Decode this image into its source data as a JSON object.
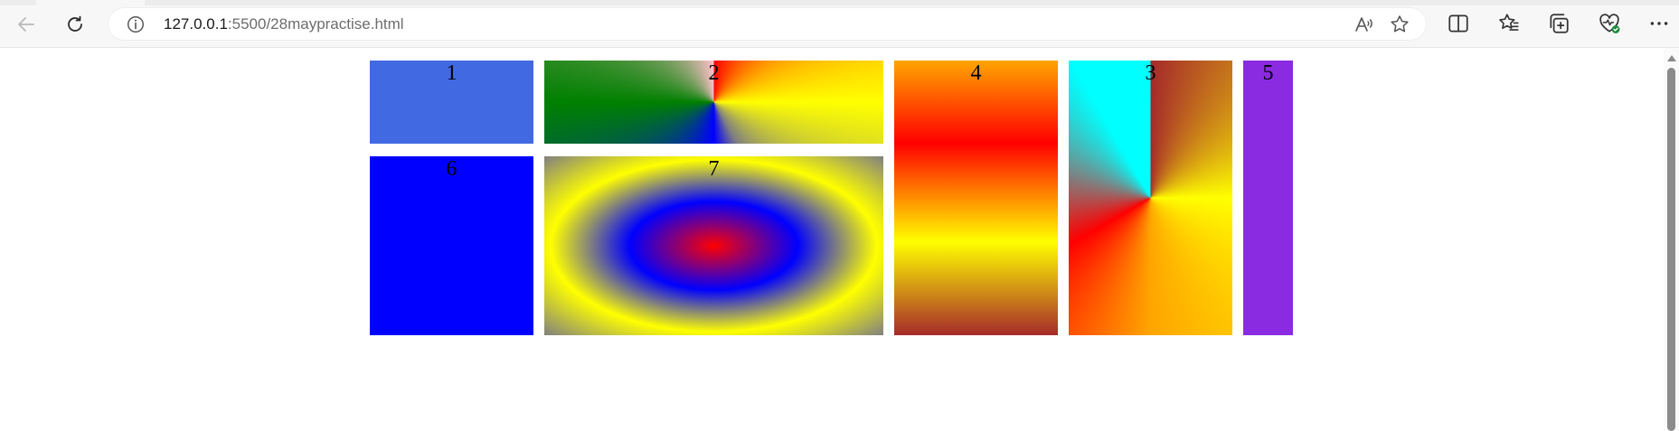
{
  "browser": {
    "address_bar": {
      "host": "127.0.0.1",
      "path": ":5500/28maypractise.html"
    },
    "icons": {
      "back": "back-arrow-icon",
      "reload": "reload-icon",
      "site_info": "info-icon",
      "read_aloud": "read-aloud-icon",
      "favorite": "star-icon",
      "split_screen": "split-screen-icon",
      "favorites": "favorites-icon",
      "collections": "collections-icon",
      "browser_essentials": "heart-pulse-icon",
      "more": "more-dots-icon"
    }
  },
  "page": {
    "boxes": [
      {
        "label": "1",
        "color": "#4169e1"
      },
      {
        "label": "2",
        "gradient": "conic: red, yellow, gray, blue, green, pink"
      },
      {
        "label": "4",
        "gradient": "linear: orange, red, yellow, brown"
      },
      {
        "label": "3",
        "gradient": "conic: brown, yellow, orange, red, cyan"
      },
      {
        "label": "5",
        "color": "#8a2be2"
      },
      {
        "label": "6",
        "color": "#0000ff"
      },
      {
        "label": "7",
        "gradient": "radial: red, blue, yellow, gray"
      }
    ]
  }
}
